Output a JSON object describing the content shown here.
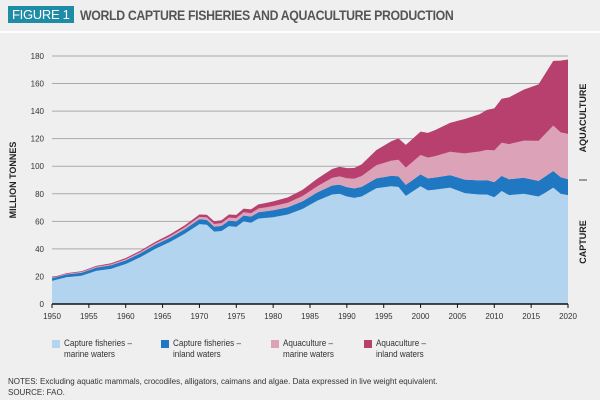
{
  "header": {
    "badge": "FIGURE 1",
    "title": "WORLD CAPTURE FISHERIES AND AQUACULTURE PRODUCTION"
  },
  "side_labels": {
    "top": "AQUACULTURE",
    "bottom": "CAPTURE"
  },
  "notes": "NOTES: Excluding aquatic mammals, crocodiles, alligators, caimans and algae. Data expressed in live weight equivalent.",
  "source": "SOURCE: FAO.",
  "legend": [
    {
      "line1": "Capture fisheries –",
      "line2": "marine waters",
      "color": "#b3d4ef"
    },
    {
      "line1": "Capture fisheries –",
      "line2": "inland waters",
      "color": "#1f78c1"
    },
    {
      "line1": "Aquaculture –",
      "line2": "marine waters",
      "color": "#dca2b8"
    },
    {
      "line1": "Aquaculture –",
      "line2": "inland waters",
      "color": "#b8406f"
    }
  ],
  "chart_data": {
    "type": "area",
    "stacked": true,
    "title": "WORLD CAPTURE FISHERIES AND AQUACULTURE PRODUCTION",
    "xlabel": "",
    "ylabel": "MILLION TONNES",
    "xlim": [
      1950,
      2020
    ],
    "ylim": [
      0,
      180
    ],
    "yticks": [
      0,
      20,
      40,
      60,
      80,
      100,
      120,
      140,
      160,
      180
    ],
    "xticks": [
      1950,
      1955,
      1960,
      1965,
      1970,
      1975,
      1980,
      1985,
      1990,
      1995,
      2000,
      2005,
      2010,
      2015,
      2020
    ],
    "grid": true,
    "legend_position": "bottom",
    "x": [
      1950,
      1952,
      1954,
      1956,
      1958,
      1960,
      1962,
      1964,
      1966,
      1968,
      1970,
      1971,
      1972,
      1973,
      1974,
      1975,
      1976,
      1977,
      1978,
      1979,
      1980,
      1982,
      1984,
      1986,
      1988,
      1989,
      1990,
      1991,
      1992,
      1994,
      1996,
      1997,
      1998,
      2000,
      2001,
      2002,
      2004,
      2005,
      2006,
      2008,
      2009,
      2010,
      2011,
      2012,
      2014,
      2016,
      2017,
      2018,
      2019,
      2020
    ],
    "series": [
      {
        "name": "Capture fisheries – marine waters",
        "color": "#b3d4ef",
        "values": [
          16.8,
          19.5,
          20.5,
          24,
          25.5,
          29,
          34,
          40,
          45,
          51,
          58,
          57.5,
          52.5,
          53,
          56.5,
          56,
          60,
          59,
          62,
          62.5,
          63,
          65,
          69,
          75,
          79.5,
          80,
          78,
          77,
          78,
          84,
          85.5,
          85,
          78.5,
          85.5,
          82.5,
          83,
          84.5,
          82.5,
          80.5,
          79.5,
          79.5,
          77.5,
          82,
          79,
          80,
          78,
          81,
          84.5,
          80,
          79
        ]
      },
      {
        "name": "Capture fisheries – inland waters",
        "color": "#1f78c1",
        "values": [
          1.8,
          2,
          2.2,
          2.4,
          2.6,
          2.7,
          2.8,
          3,
          3,
          3.2,
          3.5,
          3.6,
          3.6,
          3.7,
          4,
          4,
          4.2,
          4.4,
          4.6,
          4.8,
          5,
          5.2,
          5.6,
          6,
          6.5,
          6.6,
          6.8,
          6.9,
          7,
          7.2,
          7.5,
          7.7,
          8,
          8.6,
          8.7,
          8.8,
          9,
          9.4,
          9.8,
          10.2,
          10.4,
          11,
          11,
          11.5,
          11.6,
          11.4,
          11.9,
          12,
          12.1,
          11.5
        ]
      },
      {
        "name": "Aquaculture – marine waters",
        "color": "#dca2b8",
        "values": [
          0.3,
          0.4,
          0.5,
          0.6,
          0.7,
          0.8,
          0.9,
          1,
          1.2,
          1.4,
          1.7,
          1.8,
          2,
          2,
          2.2,
          2.3,
          2.4,
          2.5,
          2.7,
          2.8,
          3,
          3.3,
          3.8,
          4.5,
          5.5,
          6,
          6.5,
          7,
          7.8,
          9.5,
          11,
          12,
          12.5,
          14,
          15,
          15.5,
          17,
          18,
          19,
          21,
          22,
          23,
          24,
          25.5,
          27,
          29,
          31,
          33,
          32.5,
          33
        ]
      },
      {
        "name": "Aquaculture – inland waters",
        "color": "#b8406f",
        "values": [
          0.4,
          0.5,
          0.6,
          0.7,
          0.8,
          0.9,
          1,
          1.1,
          1.3,
          1.5,
          1.8,
          1.9,
          2,
          2.1,
          2.3,
          2.4,
          2.6,
          2.8,
          3,
          3.2,
          3.5,
          3.9,
          4.5,
          5.5,
          6.5,
          7,
          7.3,
          7.8,
          8.5,
          11,
          14,
          15.5,
          16.5,
          17,
          18,
          19,
          21,
          23,
          25,
          27,
          29,
          30.5,
          32,
          34,
          37,
          41,
          44,
          47,
          52,
          54
        ]
      }
    ]
  }
}
